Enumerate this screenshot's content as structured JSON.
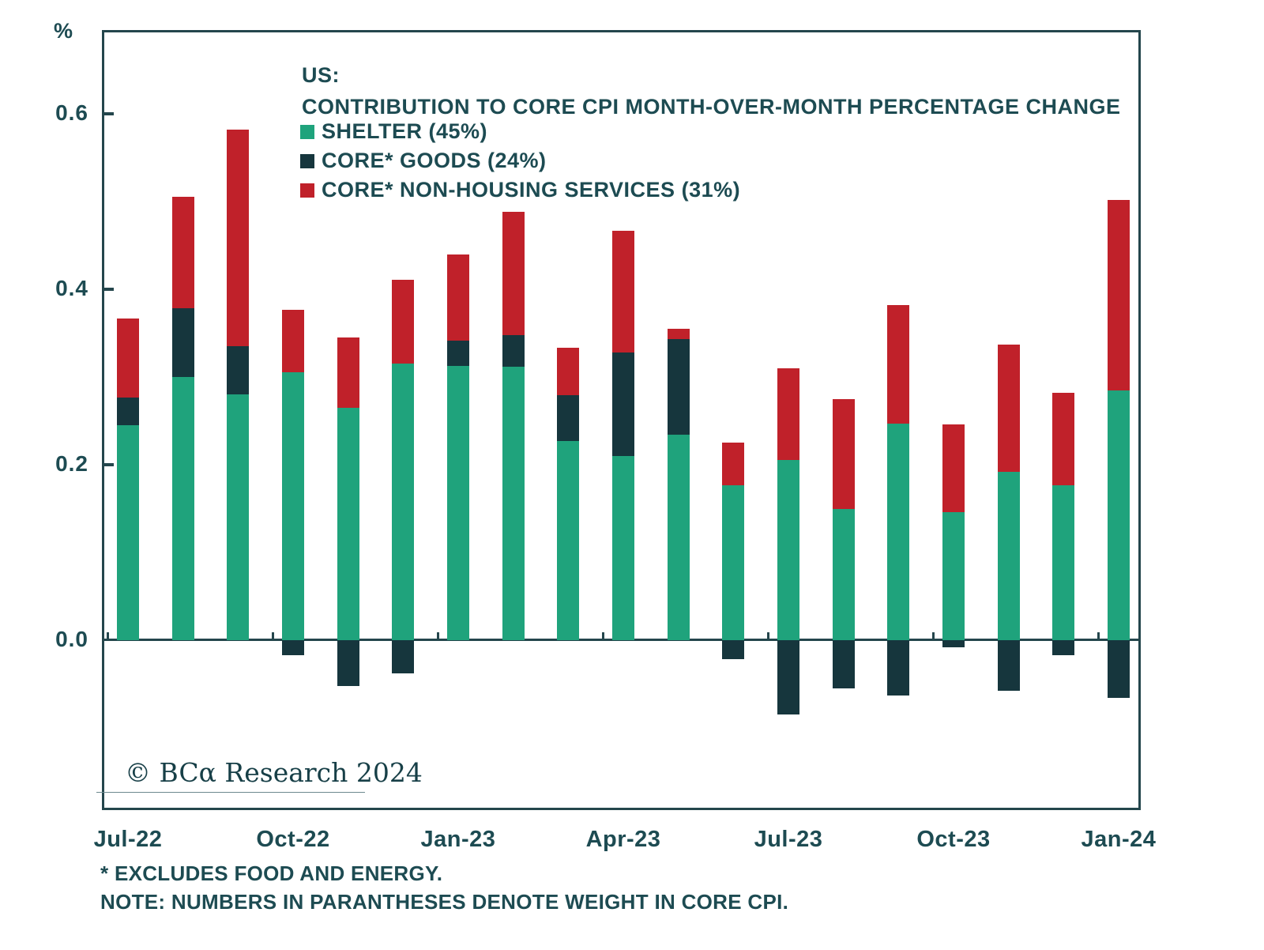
{
  "chart_data": {
    "type": "bar",
    "stacked": true,
    "title_line1": "US:",
    "title_line2": "CONTRIBUTION TO CORE CPI MONTH-OVER-MONTH PERCENTAGE CHANGE",
    "ylabel": "%",
    "ylim": [
      -0.19,
      0.69
    ],
    "grid": false,
    "legend_position": "top-left-inside",
    "y_tick_labels": [
      "0.6",
      "0.4",
      "0.2",
      "0.0"
    ],
    "y_tick_values": [
      0.6,
      0.4,
      0.2,
      0.0
    ],
    "x_axis_tick_labels": [
      "Jul-22",
      "Oct-22",
      "Jan-23",
      "Apr-23",
      "Jul-23",
      "Oct-23",
      "Jan-24"
    ],
    "x_axis_tick_indices": [
      0,
      3,
      6,
      9,
      12,
      15,
      18
    ],
    "categories": [
      "Jul-22",
      "Aug-22",
      "Sep-22",
      "Oct-22",
      "Nov-22",
      "Dec-22",
      "Jan-23",
      "Feb-23",
      "Mar-23",
      "Apr-23",
      "May-23",
      "Jun-23",
      "Jul-23",
      "Aug-23",
      "Sep-23",
      "Oct-23",
      "Nov-23",
      "Dec-23",
      "Jan-24"
    ],
    "series": [
      {
        "name": "SHELTER (45%)",
        "color": "#1fa37c",
        "values": [
          0.245,
          0.3,
          0.28,
          0.305,
          0.265,
          0.315,
          0.313,
          0.312,
          0.227,
          0.21,
          0.234,
          0.177,
          0.205,
          0.15,
          0.247,
          0.146,
          0.192,
          0.177,
          0.285
        ]
      },
      {
        "name": "CORE* GOODS (24%)",
        "color": "#16363d",
        "values": [
          0.032,
          0.078,
          0.055,
          -0.017,
          -0.052,
          -0.038,
          0.028,
          0.036,
          0.052,
          0.118,
          0.109,
          -0.022,
          -0.085,
          -0.055,
          -0.063,
          -0.008,
          -0.058,
          -0.017,
          -0.066
        ]
      },
      {
        "name": "CORE* NON-HOUSING SERVICES (31%)",
        "color": "#c0212a",
        "values": [
          0.09,
          0.127,
          0.247,
          0.072,
          0.08,
          0.096,
          0.099,
          0.14,
          0.054,
          0.139,
          0.012,
          0.048,
          0.105,
          0.125,
          0.135,
          0.1,
          0.145,
          0.105,
          0.217
        ]
      }
    ]
  },
  "branding": {
    "copyright": "© BCα Research 2024"
  },
  "footnotes": {
    "line1": "* EXCLUDES FOOD AND ENERGY.",
    "line2": "NOTE: NUMBERS IN PARANTHESES DENOTE WEIGHT IN CORE CPI."
  },
  "colors": {
    "axis": "#24464c",
    "text": "#1d4b52",
    "shelter": "#1fa37c",
    "goods": "#16363d",
    "services": "#c0212a",
    "background": "#ffffff"
  }
}
